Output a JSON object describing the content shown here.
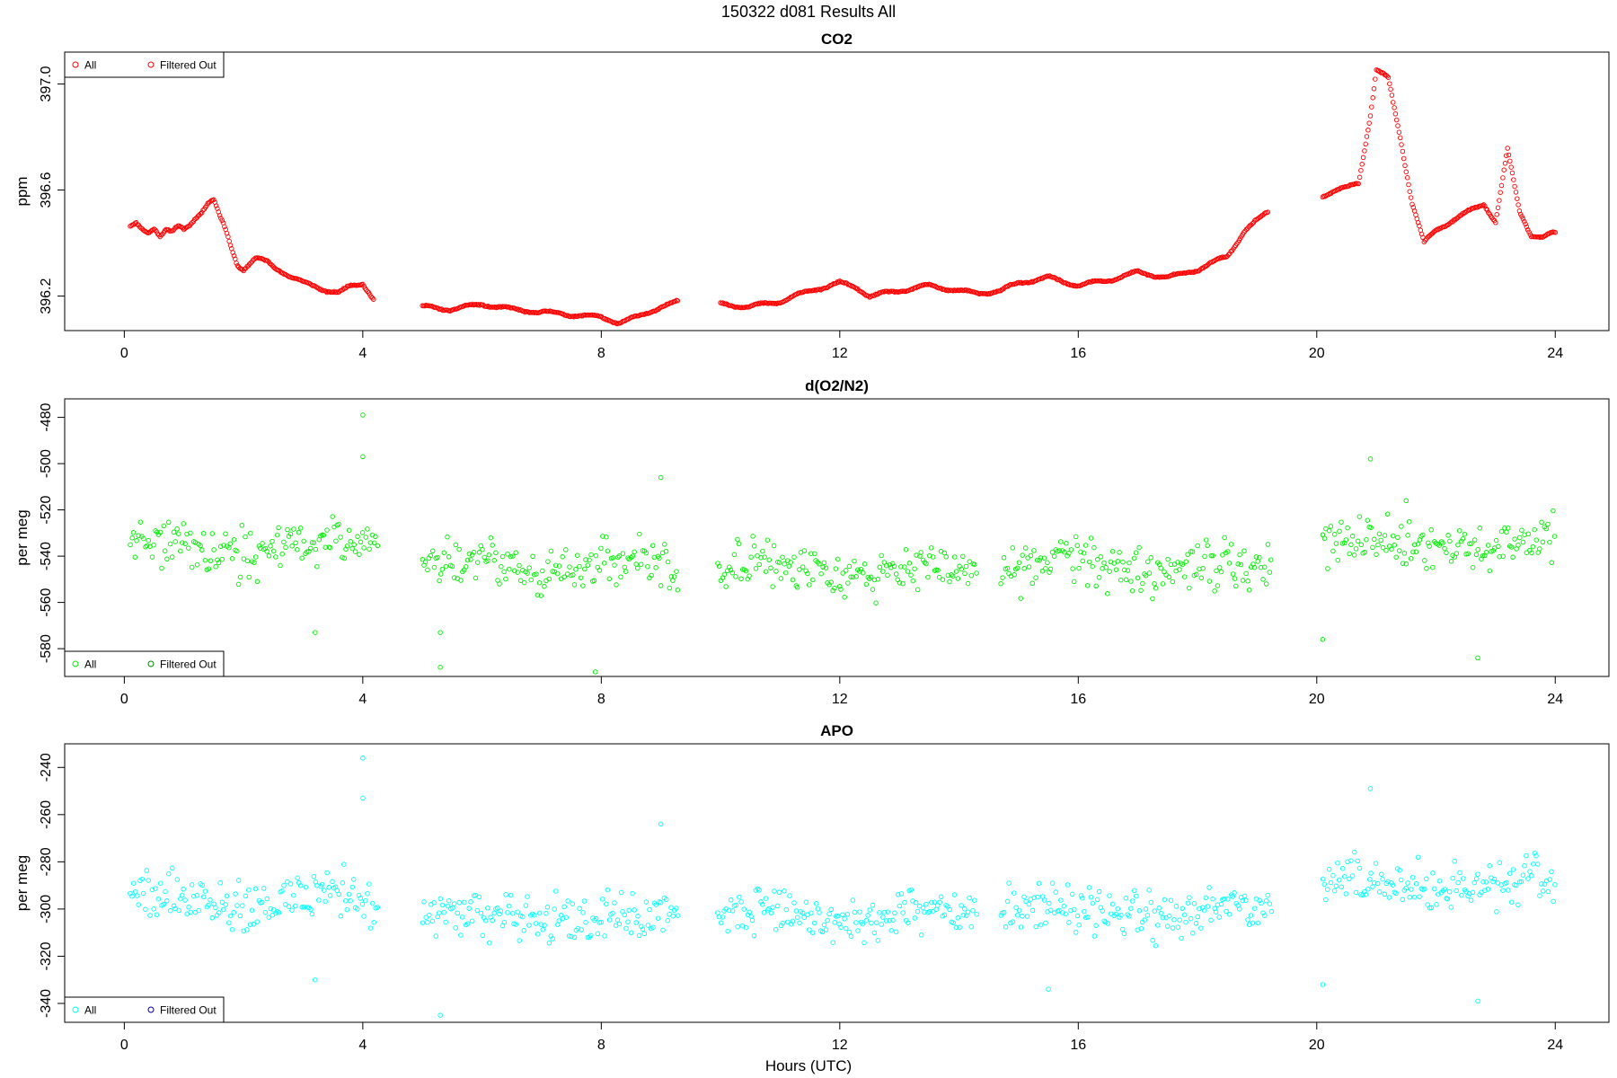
{
  "figure": {
    "title": "150322   d081   Results All",
    "xlabel": "Hours (UTC)"
  },
  "colors": {
    "co2": "#ff0000",
    "co2_filtered": "#ff0000",
    "o2n2": "#00ee00",
    "o2n2_filtered": "#008800",
    "apo": "#00ffff",
    "apo_filtered": "#000099"
  },
  "chart_data": [
    {
      "type": "scatter",
      "title": "CO2",
      "ylabel": "ppm",
      "xlim": [
        -1.0,
        24.9
      ],
      "ylim": [
        396.07,
        397.12
      ],
      "xticks": [
        0,
        4,
        8,
        12,
        16,
        20,
        24
      ],
      "yticks": [
        396.2,
        396.6,
        397.0
      ],
      "ytick_labels": [
        "396.2",
        "396.6",
        "397.0"
      ],
      "legend": {
        "position": "top-left",
        "entries": [
          "All",
          "Filtered Out"
        ]
      },
      "series": [
        {
          "name": "All",
          "x": [
            0.1,
            0.2,
            0.3,
            0.4,
            0.5,
            0.6,
            0.7,
            0.8,
            0.9,
            1.0,
            1.1,
            1.2,
            1.3,
            1.4,
            1.5,
            1.6,
            1.7,
            1.8,
            1.9,
            2.0,
            2.2,
            2.4,
            2.6,
            2.8,
            3.0,
            3.2,
            3.4,
            3.6,
            3.8,
            4.0,
            4.2,
            5.0,
            5.5,
            6.0,
            6.5,
            7.0,
            7.5,
            8.0,
            8.3,
            8.6,
            9.0,
            9.3,
            10.0,
            10.5,
            11.0,
            11.5,
            12.0,
            12.3,
            12.5,
            13.0,
            13.5,
            14.0,
            14.3,
            14.7,
            15.0,
            15.5,
            16.0,
            16.5,
            17.0,
            17.5,
            18.0,
            18.5,
            18.8,
            19.2,
            20.1,
            20.4,
            20.7,
            20.9,
            21.0,
            21.2,
            21.4,
            21.6,
            21.8,
            22.0,
            22.4,
            22.8,
            23.0,
            23.2,
            23.4,
            23.6,
            23.8,
            24.0
          ],
          "y": [
            396.46,
            396.47,
            396.45,
            396.44,
            396.46,
            396.43,
            396.45,
            396.44,
            396.46,
            396.45,
            396.47,
            396.5,
            396.52,
            396.55,
            396.56,
            396.5,
            396.45,
            396.38,
            396.32,
            396.3,
            396.34,
            396.33,
            396.3,
            396.27,
            396.25,
            396.24,
            396.22,
            396.21,
            396.24,
            396.25,
            396.18,
            396.16,
            396.15,
            396.17,
            396.15,
            396.14,
            396.13,
            396.12,
            396.1,
            396.12,
            396.16,
            396.18,
            396.17,
            396.16,
            396.18,
            396.22,
            396.25,
            396.23,
            396.2,
            396.22,
            396.24,
            396.22,
            396.21,
            396.22,
            396.25,
            396.27,
            396.24,
            396.26,
            396.29,
            396.27,
            396.3,
            396.35,
            396.45,
            396.52,
            396.58,
            396.6,
            396.63,
            396.88,
            397.05,
            397.02,
            396.8,
            396.55,
            396.4,
            396.45,
            396.5,
            396.55,
            396.48,
            396.75,
            396.52,
            396.43,
            396.42,
            396.44
          ]
        }
      ]
    },
    {
      "type": "scatter",
      "title": "d(O2/N2)",
      "ylabel": "per meg",
      "xlim": [
        -1.0,
        24.9
      ],
      "ylim": [
        -592,
        -472
      ],
      "xticks": [
        0,
        4,
        8,
        12,
        16,
        20,
        24
      ],
      "yticks": [
        -580,
        -560,
        -540,
        -520,
        -500,
        -480
      ],
      "legend": {
        "position": "bottom-left",
        "entries": [
          "All",
          "Filtered Out"
        ]
      },
      "series": [
        {
          "name": "All",
          "segments": [
            [
              0.1,
              4.25
            ],
            [
              5.0,
              9.3
            ],
            [
              9.95,
              14.3
            ],
            [
              14.7,
              19.25
            ],
            [
              20.1,
              24.0
            ]
          ],
          "trend": [
            -536,
            -544,
            -546,
            -544,
            -535
          ],
          "outliers": {
            "x": [
              4.0,
              4.0,
              5.3,
              5.3,
              7.9,
              9.0,
              20.1,
              20.9,
              22.7,
              3.2,
              21.5
            ],
            "y": [
              -479,
              -497,
              -573,
              -588,
              -590,
              -506,
              -576,
              -498,
              -584,
              -573,
              -516
            ]
          }
        }
      ]
    },
    {
      "type": "scatter",
      "title": "APO",
      "ylabel": "per meg",
      "xlim": [
        -1.0,
        24.9
      ],
      "ylim": [
        -348,
        -230
      ],
      "xticks": [
        0,
        4,
        8,
        12,
        16,
        20,
        24
      ],
      "yticks": [
        -340,
        -320,
        -300,
        -280,
        -260,
        -240
      ],
      "legend": {
        "position": "bottom-left",
        "entries": [
          "All",
          "Filtered Out"
        ]
      },
      "series": [
        {
          "name": "All",
          "segments": [
            [
              0.1,
              4.25
            ],
            [
              5.0,
              9.3
            ],
            [
              9.95,
              14.3
            ],
            [
              14.7,
              19.25
            ],
            [
              20.1,
              24.0
            ]
          ],
          "trend": [
            -296,
            -303,
            -303,
            -301,
            -290
          ],
          "outliers": {
            "x": [
              4.0,
              4.0,
              5.3,
              7.9,
              9.0,
              20.1,
              20.9,
              22.7,
              3.2,
              15.5
            ],
            "y": [
              -236,
              -253,
              -345,
              -348,
              -264,
              -332,
              -249,
              -339,
              -330,
              -334
            ]
          }
        }
      ]
    }
  ]
}
